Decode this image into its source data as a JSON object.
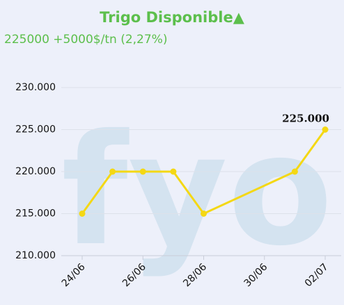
{
  "chart_data": {
    "type": "line",
    "title": "Trigo Disponible▲",
    "subtitle": "225000 +5000$/tn (2,27%)",
    "watermark": "fyo",
    "x": [
      "24/06",
      "25/06",
      "26/06",
      "27/06",
      "28/06",
      "01/07",
      "02/07"
    ],
    "series": [
      {
        "name": "Trigo Disponible",
        "color": "#f4d814",
        "values": [
          215000,
          220000,
          220000,
          220000,
          215000,
          220000,
          225000
        ],
        "value_labels": [
          null,
          null,
          null,
          null,
          null,
          null,
          "225.000"
        ]
      }
    ],
    "ylim": [
      210000,
      230000
    ],
    "yticks": [
      {
        "value": 210000,
        "label": "210.000"
      },
      {
        "value": 215000,
        "label": "215.000"
      },
      {
        "value": 220000,
        "label": "220.000"
      },
      {
        "value": 225000,
        "label": "225.000"
      },
      {
        "value": 230000,
        "label": "230.000"
      }
    ],
    "xticks": [
      "24/06",
      "26/06",
      "28/06",
      "30/06",
      "02/07"
    ],
    "grid": true
  }
}
